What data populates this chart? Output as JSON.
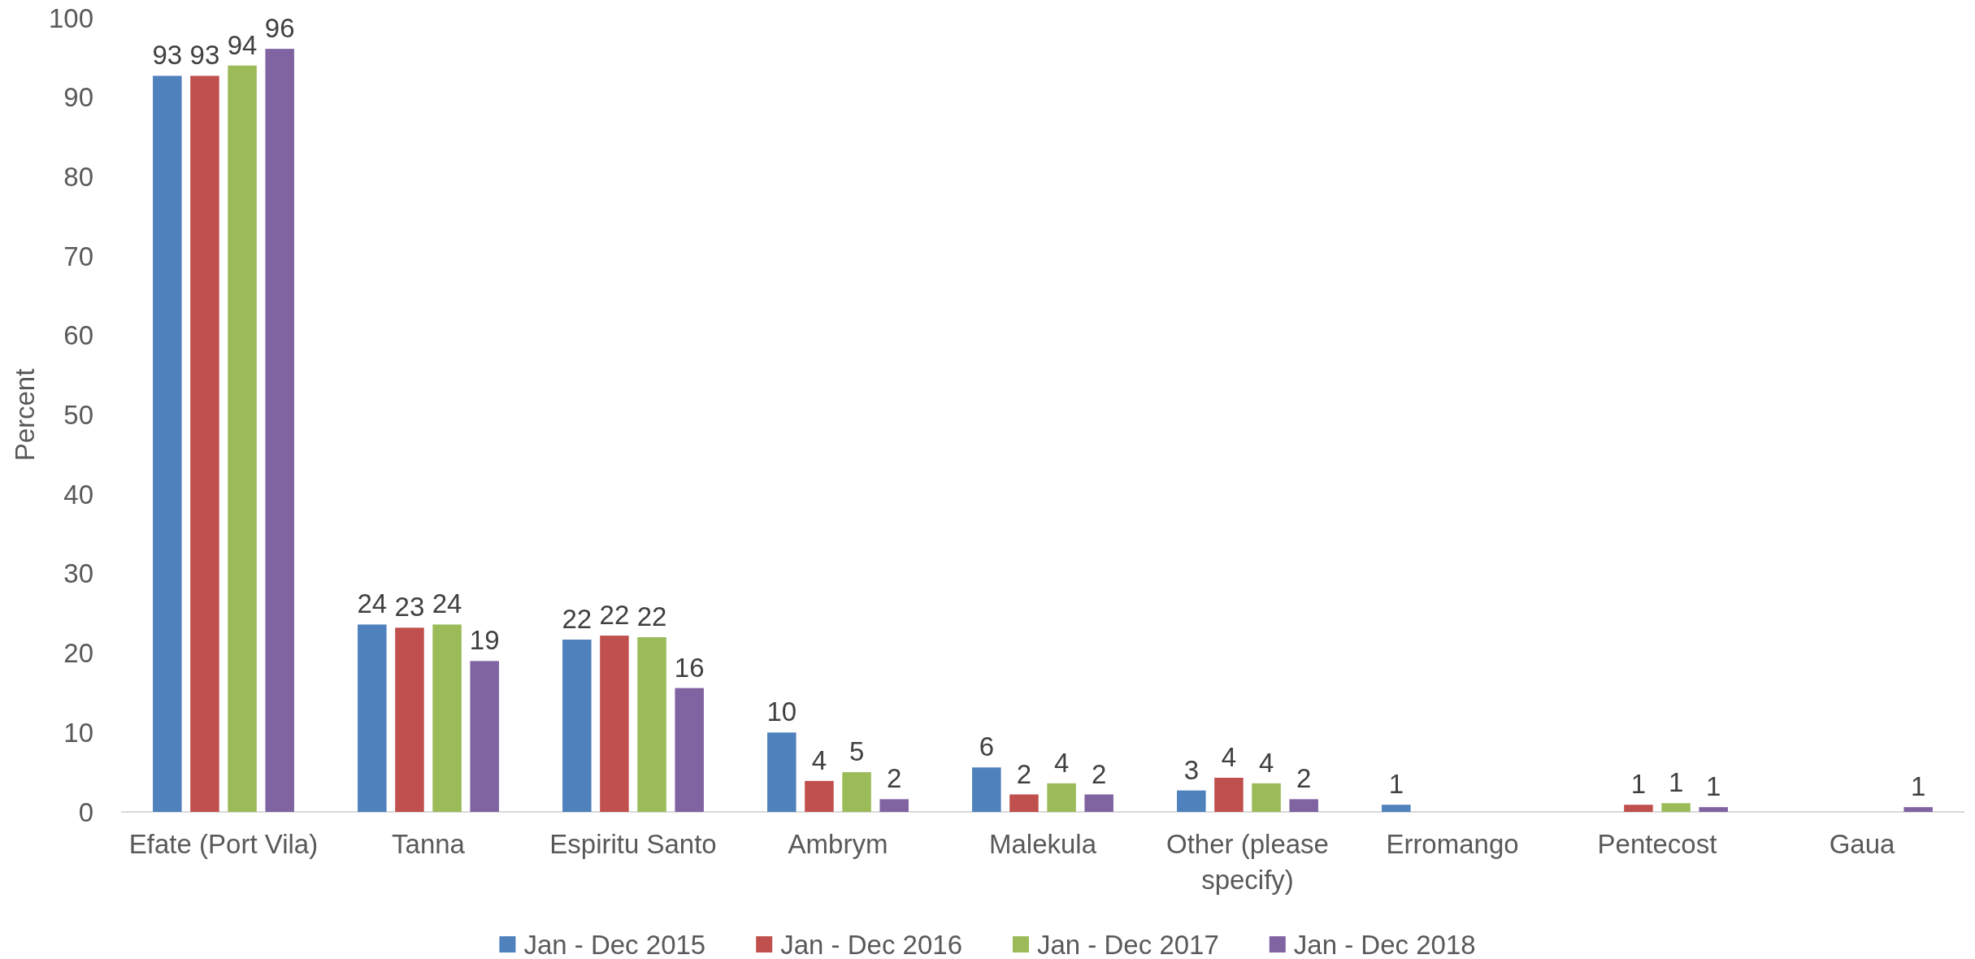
{
  "chart_data": {
    "type": "bar",
    "ylabel": "Percent",
    "categories": [
      "Efate (Port Vila)",
      "Tanna",
      "Espiritu Santo",
      "Ambrym",
      "Malekula",
      "Other (please specify)",
      "Erromango",
      "Pentecost",
      "Gaua"
    ],
    "series": [
      {
        "name": "Jan - Dec 2015",
        "color": "#4f81bd",
        "values": [
          92.7,
          23.6,
          21.7,
          10.0,
          5.6,
          2.7,
          0.9,
          null,
          null
        ],
        "value_labels": [
          "93",
          "24",
          "22",
          "10",
          "6",
          "3",
          "1",
          null,
          null
        ]
      },
      {
        "name": "Jan - Dec 2016",
        "color": "#c0504d",
        "values": [
          92.7,
          23.2,
          22.2,
          3.9,
          2.2,
          4.3,
          null,
          0.9,
          null
        ],
        "value_labels": [
          "93",
          "23",
          "22",
          "4",
          "2",
          "4",
          null,
          "1",
          null
        ]
      },
      {
        "name": "Jan - Dec 2017",
        "color": "#9bbb59",
        "values": [
          94.0,
          23.6,
          22.0,
          5.0,
          3.6,
          3.6,
          null,
          1.1,
          null
        ],
        "value_labels": [
          "94",
          "24",
          "22",
          "5",
          "4",
          "4",
          null,
          "1",
          null
        ]
      },
      {
        "name": "Jan - Dec 2018",
        "color": "#8064a2",
        "values": [
          96.1,
          19.0,
          15.6,
          1.6,
          2.2,
          1.6,
          null,
          0.6,
          0.6
        ],
        "value_labels": [
          "96",
          "19",
          "16",
          "2",
          "2",
          "2",
          null,
          "1",
          "1"
        ]
      }
    ],
    "ylim": [
      0,
      100
    ],
    "yticks": [
      0,
      10,
      20,
      30,
      40,
      50,
      60,
      70,
      80,
      90,
      100
    ],
    "legend": "bottom"
  }
}
